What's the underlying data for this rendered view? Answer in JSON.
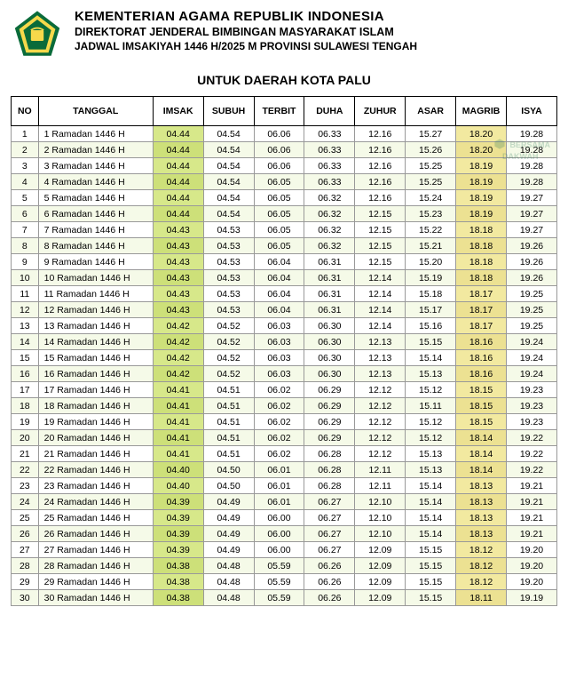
{
  "header": {
    "line1": "KEMENTERIAN AGAMA REPUBLIK INDONESIA",
    "line2": "DIREKTORAT JENDERAL BIMBINGAN MASYARAKAT ISLAM",
    "line3": "JADWAL IMSAKIYAH 1446 H/2025 M PROVINSI SULAWESI TENGAH"
  },
  "subtitle": "UNTUK DAERAH KOTA PALU",
  "watermark": {
    "line1": "BERSAMA",
    "line2": "DAKWAH"
  },
  "logo_colors": {
    "outer": "#0a6b3a",
    "mid": "#f6d94b",
    "star": "#ffffff"
  },
  "columns": [
    "NO",
    "TANGGAL",
    "IMSAK",
    "SUBUH",
    "TERBIT",
    "DUHA",
    "ZUHUR",
    "ASAR",
    "MAGRIB",
    "ISYA"
  ],
  "highlight_cols": {
    "imsak_index": 2,
    "magrib_index": 8
  },
  "colors": {
    "row_even": "#f5fae8",
    "row_odd": "#ffffff",
    "imsak_bg": "#d7e88a",
    "imsak_bg_even": "#cde079",
    "magrib_bg": "#f2e9a0",
    "magrib_bg_even": "#ece192",
    "border": "#000000"
  },
  "rows": [
    {
      "no": "1",
      "tanggal": "1 Ramadan 1446 H",
      "imsak": "04.44",
      "subuh": "04.54",
      "terbit": "06.06",
      "duha": "06.33",
      "zuhur": "12.16",
      "asar": "15.27",
      "magrib": "18.20",
      "isya": "19.28"
    },
    {
      "no": "2",
      "tanggal": "2 Ramadan 1446 H",
      "imsak": "04.44",
      "subuh": "04.54",
      "terbit": "06.06",
      "duha": "06.33",
      "zuhur": "12.16",
      "asar": "15.26",
      "magrib": "18.20",
      "isya": "19.28"
    },
    {
      "no": "3",
      "tanggal": "3 Ramadan 1446 H",
      "imsak": "04.44",
      "subuh": "04.54",
      "terbit": "06.06",
      "duha": "06.33",
      "zuhur": "12.16",
      "asar": "15.25",
      "magrib": "18.19",
      "isya": "19.28"
    },
    {
      "no": "4",
      "tanggal": "4 Ramadan 1446 H",
      "imsak": "04.44",
      "subuh": "04.54",
      "terbit": "06.05",
      "duha": "06.33",
      "zuhur": "12.16",
      "asar": "15.25",
      "magrib": "18.19",
      "isya": "19.28"
    },
    {
      "no": "5",
      "tanggal": "5 Ramadan 1446 H",
      "imsak": "04.44",
      "subuh": "04.54",
      "terbit": "06.05",
      "duha": "06.32",
      "zuhur": "12.16",
      "asar": "15.24",
      "magrib": "18.19",
      "isya": "19.27"
    },
    {
      "no": "6",
      "tanggal": "6 Ramadan 1446 H",
      "imsak": "04.44",
      "subuh": "04.54",
      "terbit": "06.05",
      "duha": "06.32",
      "zuhur": "12.15",
      "asar": "15.23",
      "magrib": "18.19",
      "isya": "19.27"
    },
    {
      "no": "7",
      "tanggal": "7 Ramadan 1446 H",
      "imsak": "04.43",
      "subuh": "04.53",
      "terbit": "06.05",
      "duha": "06.32",
      "zuhur": "12.15",
      "asar": "15.22",
      "magrib": "18.18",
      "isya": "19.27"
    },
    {
      "no": "8",
      "tanggal": "8 Ramadan 1446 H",
      "imsak": "04.43",
      "subuh": "04.53",
      "terbit": "06.05",
      "duha": "06.32",
      "zuhur": "12.15",
      "asar": "15.21",
      "magrib": "18.18",
      "isya": "19.26"
    },
    {
      "no": "9",
      "tanggal": "9 Ramadan 1446 H",
      "imsak": "04.43",
      "subuh": "04.53",
      "terbit": "06.04",
      "duha": "06.31",
      "zuhur": "12.15",
      "asar": "15.20",
      "magrib": "18.18",
      "isya": "19.26"
    },
    {
      "no": "10",
      "tanggal": "10 Ramadan 1446 H",
      "imsak": "04.43",
      "subuh": "04.53",
      "terbit": "06.04",
      "duha": "06.31",
      "zuhur": "12.14",
      "asar": "15.19",
      "magrib": "18.18",
      "isya": "19.26"
    },
    {
      "no": "11",
      "tanggal": "11 Ramadan 1446 H",
      "imsak": "04.43",
      "subuh": "04.53",
      "terbit": "06.04",
      "duha": "06.31",
      "zuhur": "12.14",
      "asar": "15.18",
      "magrib": "18.17",
      "isya": "19.25"
    },
    {
      "no": "12",
      "tanggal": "12 Ramadan 1446 H",
      "imsak": "04.43",
      "subuh": "04.53",
      "terbit": "06.04",
      "duha": "06.31",
      "zuhur": "12.14",
      "asar": "15.17",
      "magrib": "18.17",
      "isya": "19.25"
    },
    {
      "no": "13",
      "tanggal": "13 Ramadan 1446 H",
      "imsak": "04.42",
      "subuh": "04.52",
      "terbit": "06.03",
      "duha": "06.30",
      "zuhur": "12.14",
      "asar": "15.16",
      "magrib": "18.17",
      "isya": "19.25"
    },
    {
      "no": "14",
      "tanggal": "14 Ramadan 1446 H",
      "imsak": "04.42",
      "subuh": "04.52",
      "terbit": "06.03",
      "duha": "06.30",
      "zuhur": "12.13",
      "asar": "15.15",
      "magrib": "18.16",
      "isya": "19.24"
    },
    {
      "no": "15",
      "tanggal": "15 Ramadan 1446 H",
      "imsak": "04.42",
      "subuh": "04.52",
      "terbit": "06.03",
      "duha": "06.30",
      "zuhur": "12.13",
      "asar": "15.14",
      "magrib": "18.16",
      "isya": "19.24"
    },
    {
      "no": "16",
      "tanggal": "16 Ramadan 1446 H",
      "imsak": "04.42",
      "subuh": "04.52",
      "terbit": "06.03",
      "duha": "06.30",
      "zuhur": "12.13",
      "asar": "15.13",
      "magrib": "18.16",
      "isya": "19.24"
    },
    {
      "no": "17",
      "tanggal": "17 Ramadan 1446 H",
      "imsak": "04.41",
      "subuh": "04.51",
      "terbit": "06.02",
      "duha": "06.29",
      "zuhur": "12.12",
      "asar": "15.12",
      "magrib": "18.15",
      "isya": "19.23"
    },
    {
      "no": "18",
      "tanggal": "18 Ramadan 1446 H",
      "imsak": "04.41",
      "subuh": "04.51",
      "terbit": "06.02",
      "duha": "06.29",
      "zuhur": "12.12",
      "asar": "15.11",
      "magrib": "18.15",
      "isya": "19.23"
    },
    {
      "no": "19",
      "tanggal": "19 Ramadan 1446 H",
      "imsak": "04.41",
      "subuh": "04.51",
      "terbit": "06.02",
      "duha": "06.29",
      "zuhur": "12.12",
      "asar": "15.12",
      "magrib": "18.15",
      "isya": "19.23"
    },
    {
      "no": "20",
      "tanggal": "20 Ramadan 1446 H",
      "imsak": "04.41",
      "subuh": "04.51",
      "terbit": "06.02",
      "duha": "06.29",
      "zuhur": "12.12",
      "asar": "15.12",
      "magrib": "18.14",
      "isya": "19.22"
    },
    {
      "no": "21",
      "tanggal": "21 Ramadan 1446 H",
      "imsak": "04.41",
      "subuh": "04.51",
      "terbit": "06.02",
      "duha": "06.28",
      "zuhur": "12.12",
      "asar": "15.13",
      "magrib": "18.14",
      "isya": "19.22"
    },
    {
      "no": "22",
      "tanggal": "22 Ramadan 1446 H",
      "imsak": "04.40",
      "subuh": "04.50",
      "terbit": "06.01",
      "duha": "06.28",
      "zuhur": "12.11",
      "asar": "15.13",
      "magrib": "18.14",
      "isya": "19.22"
    },
    {
      "no": "23",
      "tanggal": "23 Ramadan 1446 H",
      "imsak": "04.40",
      "subuh": "04.50",
      "terbit": "06.01",
      "duha": "06.28",
      "zuhur": "12.11",
      "asar": "15.14",
      "magrib": "18.13",
      "isya": "19.21"
    },
    {
      "no": "24",
      "tanggal": "24 Ramadan 1446 H",
      "imsak": "04.39",
      "subuh": "04.49",
      "terbit": "06.01",
      "duha": "06.27",
      "zuhur": "12.10",
      "asar": "15.14",
      "magrib": "18.13",
      "isya": "19.21"
    },
    {
      "no": "25",
      "tanggal": "25 Ramadan 1446 H",
      "imsak": "04.39",
      "subuh": "04.49",
      "terbit": "06.00",
      "duha": "06.27",
      "zuhur": "12.10",
      "asar": "15.14",
      "magrib": "18.13",
      "isya": "19.21"
    },
    {
      "no": "26",
      "tanggal": "26 Ramadan 1446 H",
      "imsak": "04.39",
      "subuh": "04.49",
      "terbit": "06.00",
      "duha": "06.27",
      "zuhur": "12.10",
      "asar": "15.14",
      "magrib": "18.13",
      "isya": "19.21"
    },
    {
      "no": "27",
      "tanggal": "27 Ramadan 1446 H",
      "imsak": "04.39",
      "subuh": "04.49",
      "terbit": "06.00",
      "duha": "06.27",
      "zuhur": "12.09",
      "asar": "15.15",
      "magrib": "18.12",
      "isya": "19.20"
    },
    {
      "no": "28",
      "tanggal": "28 Ramadan 1446 H",
      "imsak": "04.38",
      "subuh": "04.48",
      "terbit": "05.59",
      "duha": "06.26",
      "zuhur": "12.09",
      "asar": "15.15",
      "magrib": "18.12",
      "isya": "19.20"
    },
    {
      "no": "29",
      "tanggal": "29 Ramadan 1446 H",
      "imsak": "04.38",
      "subuh": "04.48",
      "terbit": "05.59",
      "duha": "06.26",
      "zuhur": "12.09",
      "asar": "15.15",
      "magrib": "18.12",
      "isya": "19.20"
    },
    {
      "no": "30",
      "tanggal": "30 Ramadan 1446 H",
      "imsak": "04.38",
      "subuh": "04.48",
      "terbit": "05.59",
      "duha": "06.26",
      "zuhur": "12.09",
      "asar": "15.15",
      "magrib": "18.11",
      "isya": "19.19"
    }
  ]
}
